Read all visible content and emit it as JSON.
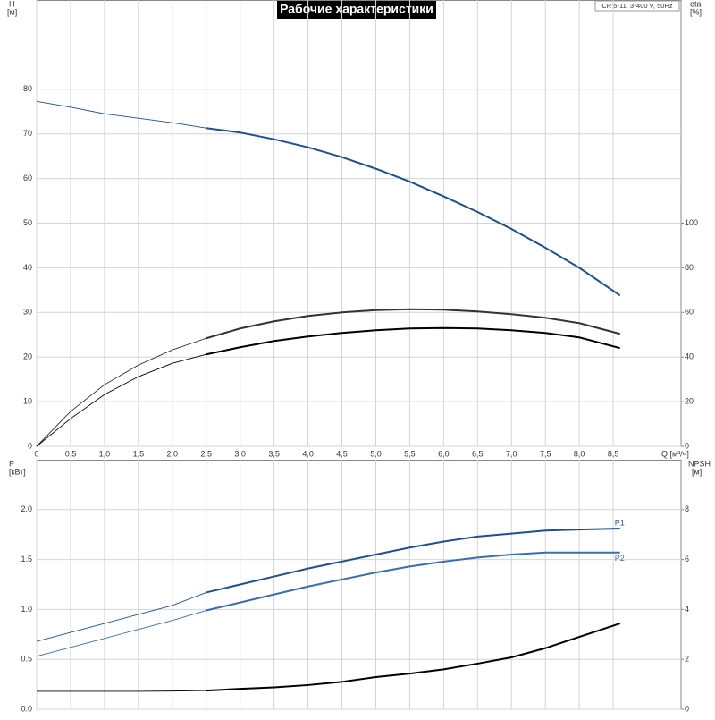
{
  "chart_data": [
    {
      "type": "line",
      "title": "Рабочие характеристики",
      "subtitle": "CR 5-11, 3*400 V, 50Hz",
      "ylabel": "H",
      "yunit": "[м]",
      "y2label": "eta",
      "y2unit": "[%]",
      "xlabel": "Q [м³/ч]",
      "operating_range": [
        2.5,
        8.6
      ],
      "grid": true,
      "x": [
        0,
        0.5,
        1,
        1.5,
        2,
        2.5,
        3,
        3.5,
        4,
        4.5,
        5,
        5.5,
        6,
        6.5,
        7,
        7.5,
        8,
        8.6
      ],
      "xlim": [
        0,
        9.5
      ],
      "xticks": [
        0,
        {
          "value": 0.5,
          "label": "0,5"
        },
        {
          "value": 1,
          "label": "1,0"
        },
        {
          "value": 1.5,
          "label": "1,5"
        },
        {
          "value": 2,
          "label": "2,0"
        },
        {
          "value": 2.5,
          "label": "2,5"
        },
        {
          "value": 3,
          "label": "3,0"
        },
        {
          "value": 3.5,
          "label": "3,5"
        },
        {
          "value": 4,
          "label": "4,0"
        },
        {
          "value": 4.5,
          "label": "4,5"
        },
        {
          "value": 5,
          "label": "5,0"
        },
        {
          "value": 5.5,
          "label": "5,5"
        },
        {
          "value": 6,
          "label": "6,0"
        },
        {
          "value": 6.5,
          "label": "6,5"
        },
        {
          "value": 7,
          "label": "7,0"
        },
        {
          "value": 7.5,
          "label": "7,5"
        },
        {
          "value": 8,
          "label": "8,0"
        },
        {
          "value": 8.5,
          "label": "8,5"
        }
      ],
      "ylim": [
        0,
        100
      ],
      "yticks": [
        0,
        10,
        20,
        30,
        40,
        50,
        60,
        70,
        80
      ],
      "y2lim": [
        0,
        200
      ],
      "y2ticks": [
        0,
        20,
        40,
        60,
        80,
        100
      ],
      "series": [
        {
          "color": "#1f4f8f",
          "values": [
            77.3,
            76,
            74.5,
            73.5,
            72.5,
            71.3,
            70.3,
            68.8,
            67,
            64.8,
            62.2,
            59.3,
            56,
            52.5,
            48.7,
            44.5,
            40,
            33.8
          ]
        },
        {
          "color": "#333333",
          "axis": "y2",
          "values": [
            0,
            15.6,
            27.6,
            36.4,
            43.2,
            48.4,
            52.8,
            56,
            58.4,
            60,
            61,
            61.4,
            61.2,
            60.4,
            59.2,
            57.6,
            55.2,
            50.4
          ]
        },
        {
          "color": "#000000",
          "axis": "y2",
          "values": [
            0,
            12.4,
            23.2,
            31.2,
            37.2,
            41.2,
            44.4,
            47.2,
            49.2,
            50.8,
            52,
            52.8,
            53,
            52.8,
            52,
            50.8,
            48.8,
            44
          ]
        }
      ]
    },
    {
      "type": "line",
      "ylabel": "P",
      "yunit": "[кВт]",
      "y2label": "NPSH",
      "y2unit": "[м]",
      "operating_range": [
        2.5,
        8.6
      ],
      "grid": true,
      "x": [
        0,
        0.5,
        1,
        1.5,
        2,
        2.5,
        3,
        3.5,
        4,
        4.5,
        5,
        5.5,
        6,
        6.5,
        7,
        7.5,
        8,
        8.6
      ],
      "xlim": [
        0,
        9.5
      ],
      "ylim": [
        0,
        2.5
      ],
      "yticks": [
        {
          "value": 0,
          "label": "0.0"
        },
        0.5,
        {
          "value": 1,
          "label": "1.0"
        },
        1.5,
        {
          "value": 2,
          "label": "2.0"
        }
      ],
      "y2lim": [
        0,
        10
      ],
      "y2ticks": [
        0,
        2,
        4,
        6,
        8
      ],
      "series": [
        {
          "name": "P1",
          "color": "#1f4f8f",
          "values": [
            0.68,
            0.77,
            0.86,
            0.95,
            1.04,
            1.17,
            1.25,
            1.33,
            1.41,
            1.48,
            1.55,
            1.62,
            1.68,
            1.73,
            1.76,
            1.79,
            1.8,
            1.81
          ]
        },
        {
          "name": "P2",
          "color": "#3a6ea8",
          "values": [
            0.53,
            0.62,
            0.71,
            0.8,
            0.89,
            0.99,
            1.07,
            1.15,
            1.23,
            1.3,
            1.37,
            1.43,
            1.48,
            1.52,
            1.55,
            1.57,
            1.57,
            1.57
          ]
        },
        {
          "color": "#000000",
          "axis": "y2",
          "values": [
            0.72,
            0.72,
            0.72,
            0.72,
            0.73,
            0.75,
            0.82,
            0.88,
            0.97,
            1.1,
            1.29,
            1.43,
            1.6,
            1.83,
            2.08,
            2.45,
            2.9,
            3.44
          ]
        }
      ]
    }
  ]
}
